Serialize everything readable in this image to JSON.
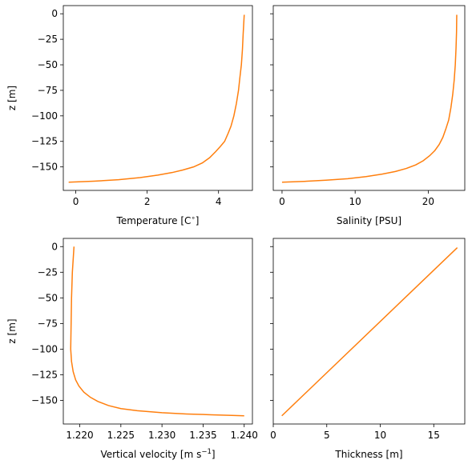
{
  "colors": {
    "line": "#ff7f0e"
  },
  "chart_data": [
    {
      "type": "line",
      "xlabel": "Temperature [C$^\\circ$]",
      "xlabel_parts": {
        "text": "Temperature [C",
        "sup": "∘",
        "end": "]"
      },
      "ylabel": "z [m]",
      "xlim": [
        -0.35,
        4.95
      ],
      "ylim": [
        -173,
        8
      ],
      "xticks": [
        0,
        2,
        4
      ],
      "xtick_labels": [
        "0",
        "2",
        "4"
      ],
      "yticks": [
        0,
        -25,
        -50,
        -75,
        -100,
        -125,
        -150
      ],
      "ytick_labels": [
        "0",
        "−25",
        "−50",
        "−75",
        "−100",
        "−125",
        "−150"
      ],
      "show_ytick_labels": true,
      "series": [
        {
          "x": [
            -0.2,
            0.5,
            1.2,
            1.8,
            2.3,
            2.7,
            3.0,
            3.3,
            3.55,
            3.75,
            3.92,
            4.05,
            4.17,
            4.27,
            4.35,
            4.43,
            4.5,
            4.56,
            4.6,
            4.64,
            4.67,
            4.69,
            4.72
          ],
          "y": [
            -165,
            -164,
            -162.5,
            -160.5,
            -158,
            -155.5,
            -153,
            -150,
            -146,
            -141,
            -135,
            -130,
            -125,
            -117,
            -110,
            -100,
            -88,
            -75,
            -62,
            -50,
            -35,
            -20,
            -1
          ]
        }
      ]
    },
    {
      "type": "line",
      "xlabel": "Salinity [PSU]",
      "ylabel": "",
      "xlim": [
        -1.2,
        25.0
      ],
      "ylim": [
        -173,
        8
      ],
      "xticks": [
        0,
        10,
        20
      ],
      "xtick_labels": [
        "0",
        "10",
        "20"
      ],
      "yticks": [
        0,
        -25,
        -50,
        -75,
        -100,
        -125,
        -150
      ],
      "ytick_labels": [
        "",
        "",
        "",
        "",
        "",
        "",
        ""
      ],
      "show_ytick_labels": false,
      "series": [
        {
          "x": [
            0,
            3,
            6,
            9,
            11.5,
            13.7,
            15.5,
            17,
            18.3,
            19.3,
            20.2,
            20.9,
            21.5,
            22,
            22.4,
            22.8,
            23.1,
            23.35,
            23.55,
            23.7,
            23.8,
            23.87,
            23.9
          ],
          "y": [
            -165,
            -164.2,
            -163,
            -161.5,
            -159.5,
            -157,
            -154.5,
            -151.5,
            -148,
            -144,
            -139,
            -134,
            -128,
            -121,
            -113,
            -104,
            -92,
            -79,
            -65,
            -50,
            -34,
            -18,
            -1
          ]
        }
      ]
    },
    {
      "type": "line",
      "xlabel": "Vertical velocity [m s$^{-1}$]",
      "xlabel_parts": {
        "text": "Vertical velocity [m s",
        "sup": "−1",
        "end": "]"
      },
      "ylabel": "z [m]",
      "xlim": [
        1.218,
        1.241
      ],
      "ylim": [
        -173,
        8
      ],
      "xticks": [
        1.22,
        1.225,
        1.23,
        1.235,
        1.24
      ],
      "xtick_labels": [
        "1.220",
        "1.225",
        "1.230",
        "1.235",
        "1.240"
      ],
      "yticks": [
        0,
        -25,
        -50,
        -75,
        -100,
        -125,
        -150
      ],
      "ytick_labels": [
        "0",
        "−25",
        "−50",
        "−75",
        "−100",
        "−125",
        "−150"
      ],
      "show_ytick_labels": true,
      "series": [
        {
          "x": [
            1.2193,
            1.2191,
            1.219,
            1.21895,
            1.2189,
            1.219,
            1.2192,
            1.2195,
            1.2199,
            1.2205,
            1.2213,
            1.2222,
            1.2235,
            1.225,
            1.227,
            1.23,
            1.233,
            1.236,
            1.2385,
            1.24
          ],
          "y": [
            0,
            -25,
            -50,
            -75,
            -100,
            -112,
            -122,
            -130,
            -136,
            -142,
            -147,
            -151,
            -155,
            -158,
            -160,
            -162,
            -163.2,
            -164,
            -164.6,
            -165
          ]
        }
      ]
    },
    {
      "type": "line",
      "xlabel": "Thickness [m]",
      "ylabel": "",
      "xlim": [
        0,
        17.9
      ],
      "ylim": [
        -173,
        8
      ],
      "xticks": [
        0,
        5,
        10,
        15
      ],
      "xtick_labels": [
        "0",
        "5",
        "10",
        "15"
      ],
      "yticks": [
        0,
        -25,
        -50,
        -75,
        -100,
        -125,
        -150
      ],
      "ytick_labels": [
        "",
        "",
        "",
        "",
        "",
        "",
        ""
      ],
      "show_ytick_labels": false,
      "series": [
        {
          "x": [
            0.8,
            17.2
          ],
          "y": [
            -165,
            -1
          ]
        }
      ]
    }
  ]
}
